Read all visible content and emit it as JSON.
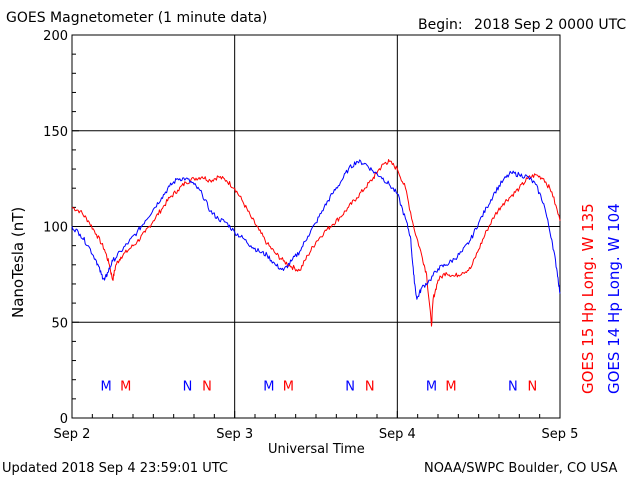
{
  "header": {
    "title": "GOES Magnetometer (1 minute data)",
    "begin_label": "Begin:",
    "begin_value": "2018 Sep 2 0000 UTC"
  },
  "footer": {
    "updated": "Updated 2018 Sep  4 23:59:01 UTC",
    "credit": "NOAA/SWPC Boulder, CO USA"
  },
  "colors": {
    "goes15": "#ff0000",
    "goes14": "#0000ff",
    "grid": "#000000"
  },
  "chart_data": {
    "type": "line",
    "xlabel": "Universal Time",
    "ylabel": "NanoTesla (nT)",
    "ylim": [
      0,
      200
    ],
    "xlim_days": [
      0,
      3
    ],
    "x_ticks": [
      {
        "pos": 0,
        "label": "Sep 2"
      },
      {
        "pos": 1,
        "label": "Sep 3"
      },
      {
        "pos": 2,
        "label": "Sep 4"
      },
      {
        "pos": 3,
        "label": "Sep 5"
      }
    ],
    "y_ticks": [
      0,
      50,
      100,
      150,
      200
    ],
    "grid": true,
    "series": [
      {
        "name": "GOES 15 Hp  Long. W 135",
        "color": "#ff0000",
        "x": [
          0,
          0.05,
          0.1,
          0.15,
          0.2,
          0.23,
          0.25,
          0.27,
          0.3,
          0.35,
          0.4,
          0.45,
          0.5,
          0.55,
          0.6,
          0.65,
          0.7,
          0.75,
          0.8,
          0.85,
          0.9,
          0.95,
          1.0,
          1.05,
          1.1,
          1.15,
          1.2,
          1.25,
          1.3,
          1.35,
          1.4,
          1.45,
          1.5,
          1.55,
          1.6,
          1.65,
          1.7,
          1.75,
          1.8,
          1.85,
          1.88,
          1.92,
          1.95,
          2.0,
          2.05,
          2.1,
          2.15,
          2.18,
          2.21,
          2.22,
          2.25,
          2.3,
          2.35,
          2.4,
          2.45,
          2.5,
          2.55,
          2.6,
          2.65,
          2.7,
          2.75,
          2.8,
          2.85,
          2.9,
          2.95,
          3.0
        ],
        "y": [
          110,
          108,
          103,
          96,
          88,
          80,
          72,
          80,
          84,
          88,
          92,
          97,
          103,
          109,
          115,
          119,
          123,
          125,
          126,
          124,
          126,
          124,
          120,
          113,
          105,
          98,
          91,
          86,
          82,
          79,
          77,
          85,
          92,
          97,
          101,
          105,
          110,
          115,
          120,
          125,
          129,
          133,
          134,
          130,
          120,
          100,
          85,
          75,
          48,
          62,
          72,
          76,
          74,
          76,
          78,
          88,
          98,
          106,
          112,
          116,
          120,
          125,
          127,
          125,
          118,
          103
        ]
      },
      {
        "name": "GOES 14 Hp  Long. W 104",
        "color": "#0000ff",
        "x": [
          0,
          0.05,
          0.1,
          0.15,
          0.18,
          0.2,
          0.22,
          0.25,
          0.3,
          0.35,
          0.4,
          0.45,
          0.5,
          0.55,
          0.6,
          0.65,
          0.7,
          0.75,
          0.8,
          0.85,
          0.9,
          0.95,
          1.0,
          1.05,
          1.1,
          1.15,
          1.2,
          1.25,
          1.3,
          1.35,
          1.4,
          1.45,
          1.5,
          1.55,
          1.6,
          1.65,
          1.7,
          1.75,
          1.8,
          1.85,
          1.9,
          1.95,
          2.0,
          2.05,
          2.08,
          2.1,
          2.12,
          2.15,
          2.2,
          2.25,
          2.3,
          2.35,
          2.4,
          2.45,
          2.5,
          2.55,
          2.6,
          2.65,
          2.7,
          2.75,
          2.8,
          2.85,
          2.9,
          2.95,
          2.98,
          3.0
        ],
        "y": [
          100,
          96,
          90,
          82,
          75,
          72,
          76,
          82,
          87,
          92,
          97,
          103,
          109,
          115,
          121,
          125,
          125,
          122,
          117,
          108,
          104,
          102,
          97,
          94,
          90,
          87,
          85,
          80,
          77,
          82,
          87,
          95,
          102,
          110,
          117,
          123,
          130,
          134,
          133,
          129,
          126,
          122,
          117,
          104,
          95,
          75,
          62,
          68,
          72,
          78,
          80,
          83,
          87,
          93,
          102,
          110,
          118,
          124,
          128,
          127,
          126,
          122,
          112,
          93,
          78,
          65
        ]
      }
    ],
    "markers": [
      {
        "text": "M",
        "color": "#0000ff",
        "x": 0.21
      },
      {
        "text": "M",
        "color": "#ff0000",
        "x": 0.33
      },
      {
        "text": "N",
        "color": "#0000ff",
        "x": 0.71
      },
      {
        "text": "N",
        "color": "#ff0000",
        "x": 0.83
      },
      {
        "text": "M",
        "color": "#0000ff",
        "x": 1.21
      },
      {
        "text": "M",
        "color": "#ff0000",
        "x": 1.33
      },
      {
        "text": "N",
        "color": "#0000ff",
        "x": 1.71
      },
      {
        "text": "N",
        "color": "#ff0000",
        "x": 1.83
      },
      {
        "text": "M",
        "color": "#0000ff",
        "x": 2.21
      },
      {
        "text": "M",
        "color": "#ff0000",
        "x": 2.33
      },
      {
        "text": "N",
        "color": "#0000ff",
        "x": 2.71
      },
      {
        "text": "N",
        "color": "#ff0000",
        "x": 2.83
      }
    ],
    "marker_level": 17
  }
}
